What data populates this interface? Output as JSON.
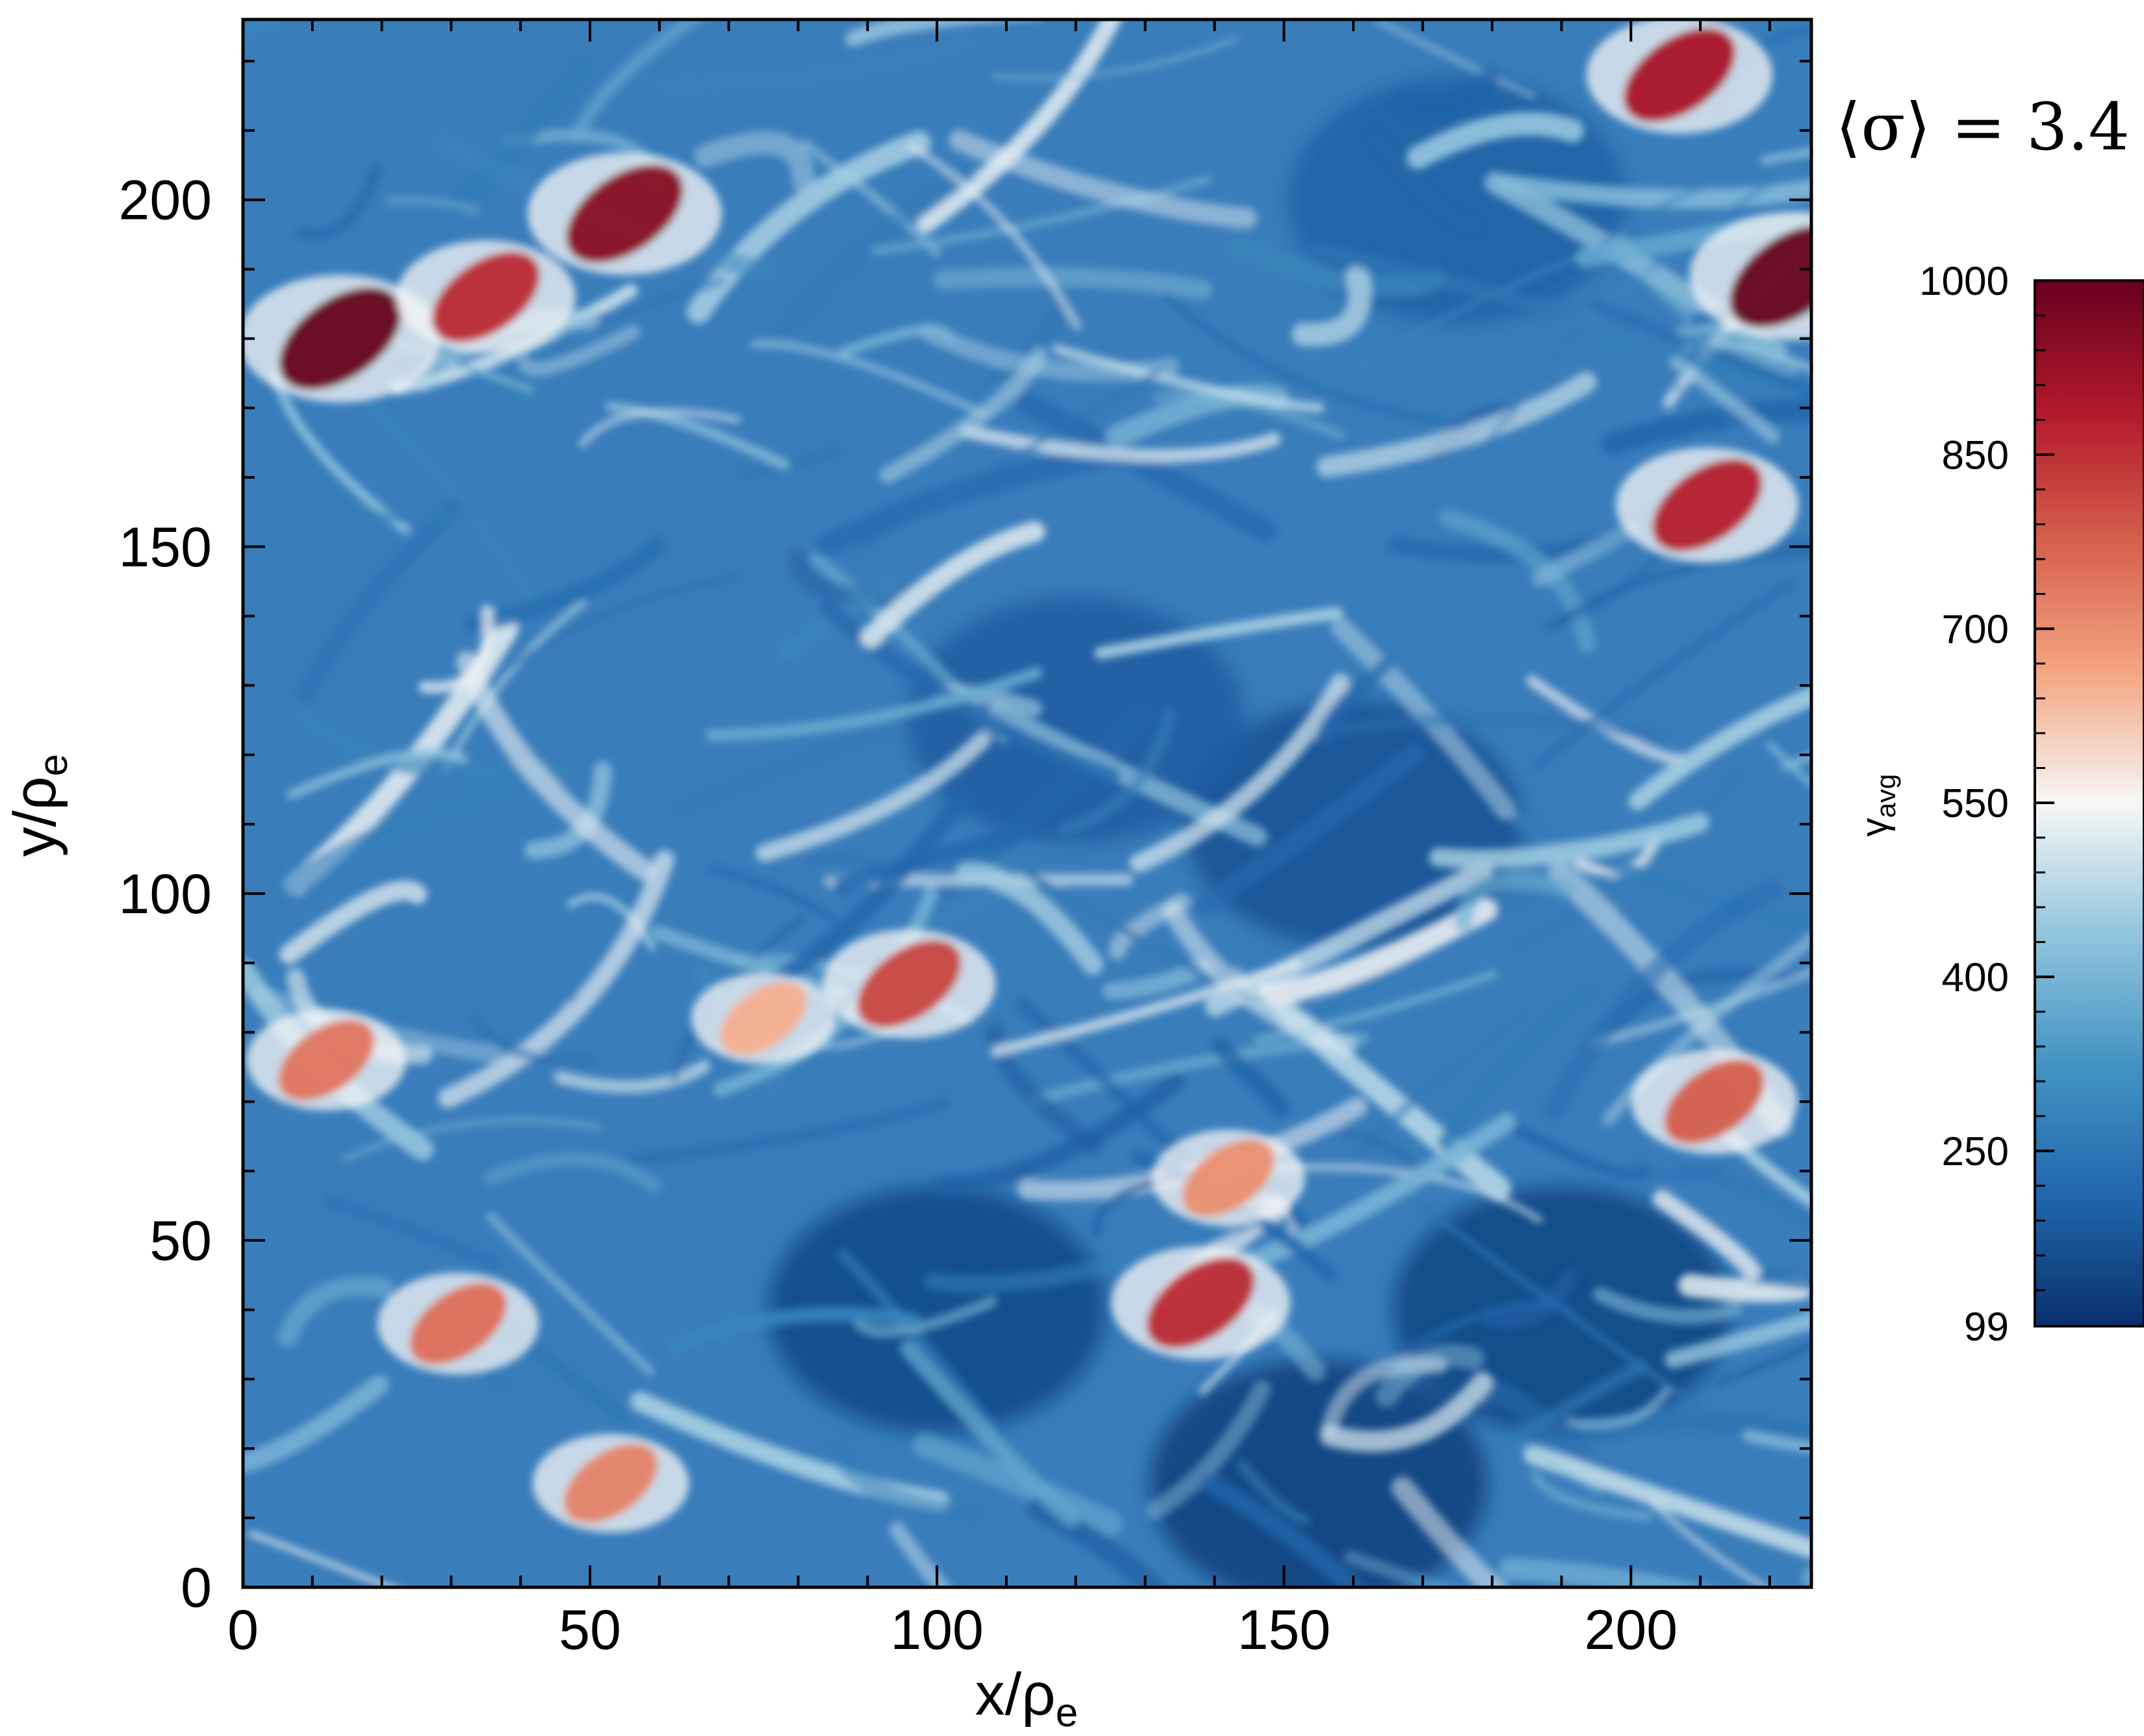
{
  "chart_data": {
    "type": "heatmap",
    "title": "",
    "annotation": "⟨σ⟩ = 3.4",
    "xlabel": {
      "main": "x/ρ",
      "sub": "e"
    },
    "ylabel": {
      "main": "y/ρ",
      "sub": "e"
    },
    "xlim": [
      0,
      226
    ],
    "ylim": [
      0,
      226
    ],
    "x_ticks": [
      0,
      50,
      100,
      150,
      200
    ],
    "y_ticks": [
      0,
      50,
      100,
      150,
      200
    ],
    "x_tick_labels": [
      "0",
      "50",
      "100",
      "150",
      "200"
    ],
    "y_tick_labels": [
      "0",
      "50",
      "100",
      "150",
      "200"
    ],
    "colorbar": {
      "label": {
        "main": "γ",
        "sub": "avg"
      },
      "range": [
        99,
        1000
      ],
      "ticks": [
        99,
        250,
        400,
        550,
        700,
        850,
        1000
      ],
      "tick_labels": [
        "99",
        "250",
        "400",
        "550",
        "700",
        "850",
        "1000"
      ],
      "colormap": [
        "#08306b",
        "#2166ac",
        "#4393c3",
        "#92c5de",
        "#f7f7f7",
        "#f4a582",
        "#d6604d",
        "#b2182b",
        "#67001f"
      ]
    },
    "hotspots": [
      {
        "x": 14,
        "y": 180,
        "gamma": 1000
      },
      {
        "x": 55,
        "y": 198,
        "gamma": 950
      },
      {
        "x": 35,
        "y": 186,
        "gamma": 860
      },
      {
        "x": 223,
        "y": 189,
        "gamma": 1000
      },
      {
        "x": 207,
        "y": 218,
        "gamma": 900
      },
      {
        "x": 211,
        "y": 156,
        "gamma": 880
      },
      {
        "x": 96,
        "y": 87,
        "gamma": 820
      },
      {
        "x": 138,
        "y": 41,
        "gamma": 860
      },
      {
        "x": 31,
        "y": 38,
        "gamma": 750
      },
      {
        "x": 53,
        "y": 15,
        "gamma": 720
      },
      {
        "x": 12,
        "y": 76,
        "gamma": 740
      },
      {
        "x": 212,
        "y": 70,
        "gamma": 780
      },
      {
        "x": 142,
        "y": 59,
        "gamma": 700
      },
      {
        "x": 75,
        "y": 82,
        "gamma": 650
      }
    ],
    "cold_regions": [
      {
        "x": 155,
        "y": 15,
        "gamma": 130
      },
      {
        "x": 100,
        "y": 40,
        "gamma": 150
      },
      {
        "x": 190,
        "y": 40,
        "gamma": 140
      },
      {
        "x": 160,
        "y": 110,
        "gamma": 170
      },
      {
        "x": 120,
        "y": 125,
        "gamma": 190
      },
      {
        "x": 175,
        "y": 200,
        "gamma": 200
      }
    ]
  }
}
